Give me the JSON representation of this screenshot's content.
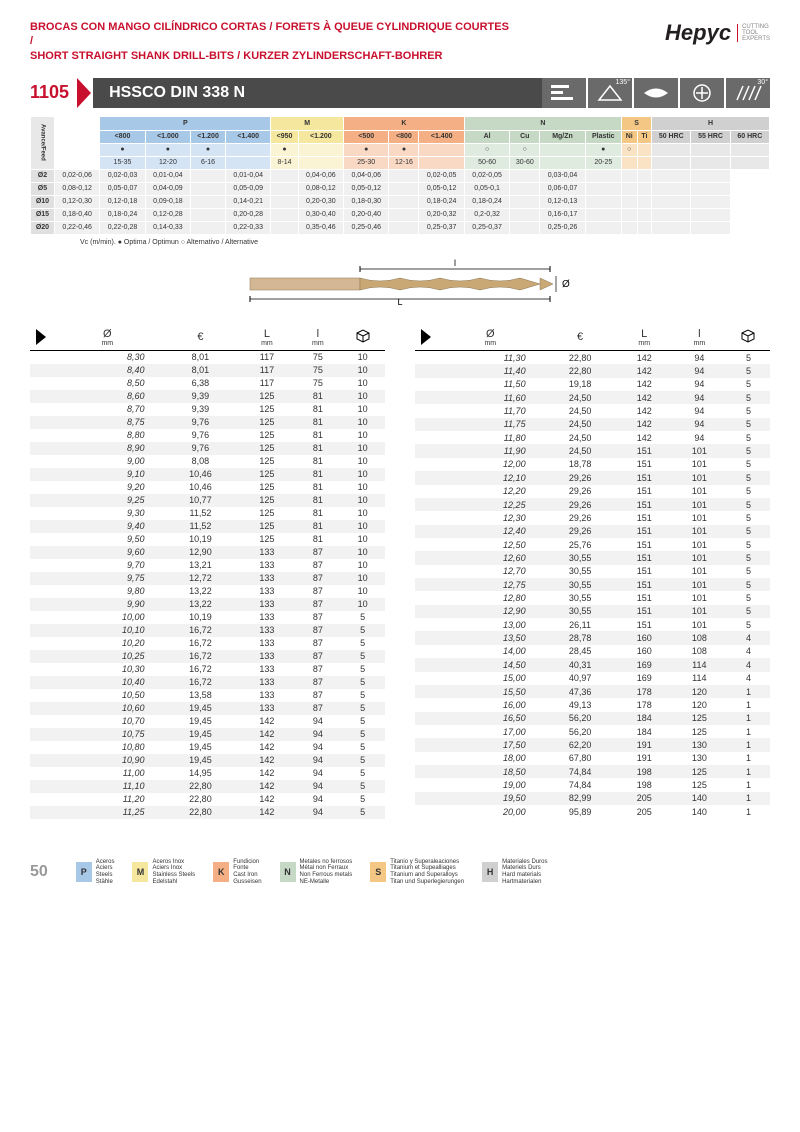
{
  "header": {
    "title_line1": "BROCAS CON MANGO CILÍNDRICO CORTAS / FORETS À QUEUE CYLINDRIQUE COURTES /",
    "title_line2": "SHORT STRAIGHT SHANK DRILL-BITS / KURZER ZYLINDERSCHAFT-BOHRER",
    "logo_text": "Hepyc",
    "logo_tag1": "CUTTING",
    "logo_tag2": "TOOL",
    "logo_tag3": "EXPERTS"
  },
  "product": {
    "number": "1105",
    "name": "HSSCO DIN 338 N",
    "angle1": "135°",
    "angle2": "30°"
  },
  "materials": {
    "groups": [
      {
        "k": "P",
        "label": "P",
        "sub": [
          "<800",
          "<1.000",
          "<1.200",
          "<1.400"
        ]
      },
      {
        "k": "M",
        "label": "M",
        "sub": [
          "<950",
          "<1.200"
        ]
      },
      {
        "k": "K",
        "label": "K",
        "sub": [
          "<500",
          "<800",
          "<1.400"
        ]
      },
      {
        "k": "N",
        "label": "N",
        "sub": [
          "Al",
          "Cu",
          "Mg/Zn",
          "Plastic"
        ]
      },
      {
        "k": "S",
        "label": "S",
        "sub": [
          "Ni",
          "Ti"
        ]
      },
      {
        "k": "H",
        "label": "H",
        "sub": [
          "50 HRC",
          "55 HRC",
          "60 HRC"
        ]
      }
    ],
    "marks_row": [
      "●",
      "●",
      "●",
      "",
      "●",
      "",
      "●",
      "●",
      "",
      "○",
      "○",
      "",
      "●",
      "○",
      "",
      "",
      "",
      ""
    ],
    "marks_sub": [
      "15-35",
      "12-20",
      "6-16",
      "",
      "8-14",
      "",
      "25-30",
      "12-16",
      "",
      "50-60",
      "30-60",
      "",
      "20-25",
      "",
      "",
      "",
      "",
      ""
    ],
    "feed_label": "Avance/Feed",
    "feed": [
      {
        "d": "Ø2",
        "v": [
          "0,02-0,06",
          "0,02-0,03",
          "0,01-0,04",
          "",
          "0,01-0,04",
          "",
          "0,04-0,06",
          "0,04-0,06",
          "",
          "0,02-0,05",
          "0,02-0,05",
          "",
          "0,03-0,04",
          "",
          "",
          "",
          "",
          ""
        ]
      },
      {
        "d": "Ø5",
        "v": [
          "0,08-0,12",
          "0,05-0,07",
          "0,04-0,09",
          "",
          "0,05-0,09",
          "",
          "0,08-0,12",
          "0,05-0,12",
          "",
          "0,05-0,12",
          "0,05-0,1",
          "",
          "0,06-0,07",
          "",
          "",
          "",
          "",
          ""
        ]
      },
      {
        "d": "Ø10",
        "v": [
          "0,12-0,30",
          "0,12-0,18",
          "0,09-0,18",
          "",
          "0,14-0,21",
          "",
          "0,20-0,30",
          "0,18-0,30",
          "",
          "0,18-0,24",
          "0,18-0,24",
          "",
          "0,12-0,13",
          "",
          "",
          "",
          "",
          ""
        ]
      },
      {
        "d": "Ø15",
        "v": [
          "0,18-0,40",
          "0,18-0,24",
          "0,12-0,28",
          "",
          "0,20-0,28",
          "",
          "0,30-0,40",
          "0,20-0,40",
          "",
          "0,20-0,32",
          "0,2-0,32",
          "",
          "0,16-0,17",
          "",
          "",
          "",
          "",
          ""
        ]
      },
      {
        "d": "Ø20",
        "v": [
          "0,22-0,46",
          "0,22-0,28",
          "0,14-0,33",
          "",
          "0,22-0,33",
          "",
          "0,35-0,46",
          "0,25-0,46",
          "",
          "0,25-0,37",
          "0,25-0,37",
          "",
          "0,25-0,26",
          "",
          "",
          "",
          "",
          ""
        ]
      }
    ],
    "footnote": "Vc (m/min). ● Optima / Optimun ○ Alternativo / Alternative"
  },
  "dim_labels": {
    "L": "L",
    "l": "l",
    "d": "Ø"
  },
  "table_headers": {
    "d": "Ø",
    "d_sub": "mm",
    "eur": "€",
    "L": "L",
    "L_sub": "mm",
    "l": "l",
    "l_sub": "mm",
    "pack": "📦"
  },
  "data_left": [
    [
      "8,30",
      "8,01",
      "117",
      "75",
      "10"
    ],
    [
      "8,40",
      "8,01",
      "117",
      "75",
      "10"
    ],
    [
      "8,50",
      "6,38",
      "117",
      "75",
      "10"
    ],
    [
      "8,60",
      "9,39",
      "125",
      "81",
      "10"
    ],
    [
      "8,70",
      "9,39",
      "125",
      "81",
      "10"
    ],
    [
      "8,75",
      "9,76",
      "125",
      "81",
      "10"
    ],
    [
      "8,80",
      "9,76",
      "125",
      "81",
      "10"
    ],
    [
      "8,90",
      "9,76",
      "125",
      "81",
      "10"
    ],
    [
      "9,00",
      "8,08",
      "125",
      "81",
      "10"
    ],
    [
      "9,10",
      "10,46",
      "125",
      "81",
      "10"
    ],
    [
      "9,20",
      "10,46",
      "125",
      "81",
      "10"
    ],
    [
      "9,25",
      "10,77",
      "125",
      "81",
      "10"
    ],
    [
      "9,30",
      "11,52",
      "125",
      "81",
      "10"
    ],
    [
      "9,40",
      "11,52",
      "125",
      "81",
      "10"
    ],
    [
      "9,50",
      "10,19",
      "125",
      "81",
      "10"
    ],
    [
      "9,60",
      "12,90",
      "133",
      "87",
      "10"
    ],
    [
      "9,70",
      "13,21",
      "133",
      "87",
      "10"
    ],
    [
      "9,75",
      "12,72",
      "133",
      "87",
      "10"
    ],
    [
      "9,80",
      "13,22",
      "133",
      "87",
      "10"
    ],
    [
      "9,90",
      "13,22",
      "133",
      "87",
      "10"
    ],
    [
      "10,00",
      "10,19",
      "133",
      "87",
      "5"
    ],
    [
      "10,10",
      "16,72",
      "133",
      "87",
      "5"
    ],
    [
      "10,20",
      "16,72",
      "133",
      "87",
      "5"
    ],
    [
      "10,25",
      "16,72",
      "133",
      "87",
      "5"
    ],
    [
      "10,30",
      "16,72",
      "133",
      "87",
      "5"
    ],
    [
      "10,40",
      "16,72",
      "133",
      "87",
      "5"
    ],
    [
      "10,50",
      "13,58",
      "133",
      "87",
      "5"
    ],
    [
      "10,60",
      "19,45",
      "133",
      "87",
      "5"
    ],
    [
      "10,70",
      "19,45",
      "142",
      "94",
      "5"
    ],
    [
      "10,75",
      "19,45",
      "142",
      "94",
      "5"
    ],
    [
      "10,80",
      "19,45",
      "142",
      "94",
      "5"
    ],
    [
      "10,90",
      "19,45",
      "142",
      "94",
      "5"
    ],
    [
      "11,00",
      "14,95",
      "142",
      "94",
      "5"
    ],
    [
      "11,10",
      "22,80",
      "142",
      "94",
      "5"
    ],
    [
      "11,20",
      "22,80",
      "142",
      "94",
      "5"
    ],
    [
      "11,25",
      "22,80",
      "142",
      "94",
      "5"
    ]
  ],
  "data_right": [
    [
      "11,30",
      "22,80",
      "142",
      "94",
      "5"
    ],
    [
      "11,40",
      "22,80",
      "142",
      "94",
      "5"
    ],
    [
      "11,50",
      "19,18",
      "142",
      "94",
      "5"
    ],
    [
      "11,60",
      "24,50",
      "142",
      "94",
      "5"
    ],
    [
      "11,70",
      "24,50",
      "142",
      "94",
      "5"
    ],
    [
      "11,75",
      "24,50",
      "142",
      "94",
      "5"
    ],
    [
      "11,80",
      "24,50",
      "142",
      "94",
      "5"
    ],
    [
      "11,90",
      "24,50",
      "151",
      "101",
      "5"
    ],
    [
      "12,00",
      "18,78",
      "151",
      "101",
      "5"
    ],
    [
      "12,10",
      "29,26",
      "151",
      "101",
      "5"
    ],
    [
      "12,20",
      "29,26",
      "151",
      "101",
      "5"
    ],
    [
      "12,25",
      "29,26",
      "151",
      "101",
      "5"
    ],
    [
      "12,30",
      "29,26",
      "151",
      "101",
      "5"
    ],
    [
      "12,40",
      "29,26",
      "151",
      "101",
      "5"
    ],
    [
      "12,50",
      "25,76",
      "151",
      "101",
      "5"
    ],
    [
      "12,60",
      "30,55",
      "151",
      "101",
      "5"
    ],
    [
      "12,70",
      "30,55",
      "151",
      "101",
      "5"
    ],
    [
      "12,75",
      "30,55",
      "151",
      "101",
      "5"
    ],
    [
      "12,80",
      "30,55",
      "151",
      "101",
      "5"
    ],
    [
      "12,90",
      "30,55",
      "151",
      "101",
      "5"
    ],
    [
      "13,00",
      "26,11",
      "151",
      "101",
      "5"
    ],
    [
      "13,50",
      "28,78",
      "160",
      "108",
      "4"
    ],
    [
      "14,00",
      "28,45",
      "160",
      "108",
      "4"
    ],
    [
      "14,50",
      "40,31",
      "169",
      "114",
      "4"
    ],
    [
      "15,00",
      "40,97",
      "169",
      "114",
      "4"
    ],
    [
      "15,50",
      "47,36",
      "178",
      "120",
      "1"
    ],
    [
      "16,00",
      "49,13",
      "178",
      "120",
      "1"
    ],
    [
      "16,50",
      "56,20",
      "184",
      "125",
      "1"
    ],
    [
      "17,00",
      "56,20",
      "184",
      "125",
      "1"
    ],
    [
      "17,50",
      "62,20",
      "191",
      "130",
      "1"
    ],
    [
      "18,00",
      "67,80",
      "191",
      "130",
      "1"
    ],
    [
      "18,50",
      "74,84",
      "198",
      "125",
      "1"
    ],
    [
      "19,00",
      "74,84",
      "198",
      "125",
      "1"
    ],
    [
      "19,50",
      "82,99",
      "205",
      "140",
      "1"
    ],
    [
      "20,00",
      "95,89",
      "205",
      "140",
      "1"
    ]
  ],
  "legend": [
    {
      "k": "P",
      "c": "#a8c8e8",
      "t": [
        "Aceros",
        "Aciers",
        "Steels",
        "Stähle"
      ]
    },
    {
      "k": "M",
      "c": "#f5e79e",
      "t": [
        "Aceros Inox",
        "Aciers Inox",
        "Stainless Steels",
        "Edelstahl"
      ]
    },
    {
      "k": "K",
      "c": "#f4b084",
      "t": [
        "Fundicion",
        "Fonte",
        "Cast Iron",
        "Gusseisen"
      ]
    },
    {
      "k": "N",
      "c": "#c5d9c5",
      "t": [
        "Metales no ferrosos",
        "Métal non Ferraux",
        "Non Ferrous metals",
        "NE-Metalle"
      ]
    },
    {
      "k": "S",
      "c": "#f4c784",
      "t": [
        "Titanio y Superaleaciones",
        "Titanium et Supealliages",
        "Titanium and Superalloys",
        "Titan und Superlegierungen"
      ]
    },
    {
      "k": "H",
      "c": "#d0d0d0",
      "t": [
        "Materiales Duros",
        "Materiels Durs",
        "Hard materials",
        "Hartmaterialen"
      ]
    }
  ],
  "page_num": "50"
}
